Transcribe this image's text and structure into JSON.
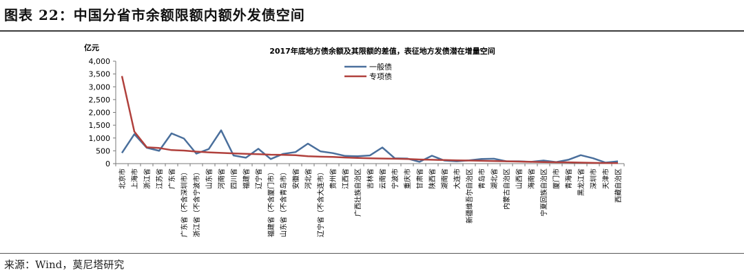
{
  "figure": {
    "title": "图表 22：中国分省市余额限额内额外发债空间",
    "source": "来源：Wind，莫尼塔研究"
  },
  "chart_data": {
    "type": "line",
    "title": "2017年底地方债余额及其限额的差值，表征地方发债潜在增量空间",
    "ylabel": "亿元",
    "xlabel": "",
    "ylim": [
      0,
      4000
    ],
    "yticks": [
      0,
      500,
      1000,
      1500,
      2000,
      2500,
      3000,
      3500,
      4000
    ],
    "ytick_labels": [
      "0",
      "500",
      "1,000",
      "1,500",
      "2,000",
      "2,500",
      "3,000",
      "3,500",
      "4,000"
    ],
    "grid": false,
    "legend": "top-center",
    "categories": [
      "北京市",
      "上海市",
      "浙江省",
      "江苏省",
      "广东省",
      "广东省（不含深圳市）",
      "浙江省（不含宁波市）",
      "山东省",
      "河南省",
      "四川省",
      "福建省",
      "辽宁省",
      "福建省（不含厦门市）",
      "山东省（不含青岛市）",
      "安徽省",
      "河北省",
      "辽宁省（不含大连市）",
      "贵州省",
      "江西省",
      "广西壮族自治区",
      "吉林省",
      "云南省",
      "宁波市",
      "重庆市",
      "甘肃省",
      "陕西省",
      "湖南省",
      "大连市",
      "新疆维吾尔自治区",
      "青岛市",
      "湖北省",
      "内蒙古自治区",
      "山西省",
      "海南省",
      "宁夏回族自治区",
      "厦门市",
      "青海省",
      "黑龙江省",
      "深圳市",
      "天津市",
      "西藏自治区"
    ],
    "series": [
      {
        "name": "一般债",
        "color": "#4a6f9c",
        "values": [
          420,
          1150,
          620,
          500,
          1180,
          980,
          390,
          570,
          1300,
          320,
          230,
          580,
          180,
          380,
          450,
          780,
          480,
          410,
          300,
          290,
          320,
          630,
          210,
          200,
          70,
          310,
          120,
          90,
          130,
          180,
          190,
          90,
          90,
          70,
          120,
          60,
          150,
          330,
          210,
          40,
          90
        ]
      },
      {
        "name": "专项债",
        "color": "#b0403c",
        "values": [
          3420,
          1250,
          640,
          610,
          530,
          510,
          470,
          440,
          420,
          400,
          380,
          370,
          350,
          340,
          330,
          290,
          270,
          260,
          240,
          220,
          210,
          200,
          190,
          180,
          160,
          150,
          140,
          130,
          120,
          110,
          100,
          90,
          80,
          70,
          60,
          55,
          50,
          40,
          30,
          25,
          20
        ]
      }
    ]
  }
}
